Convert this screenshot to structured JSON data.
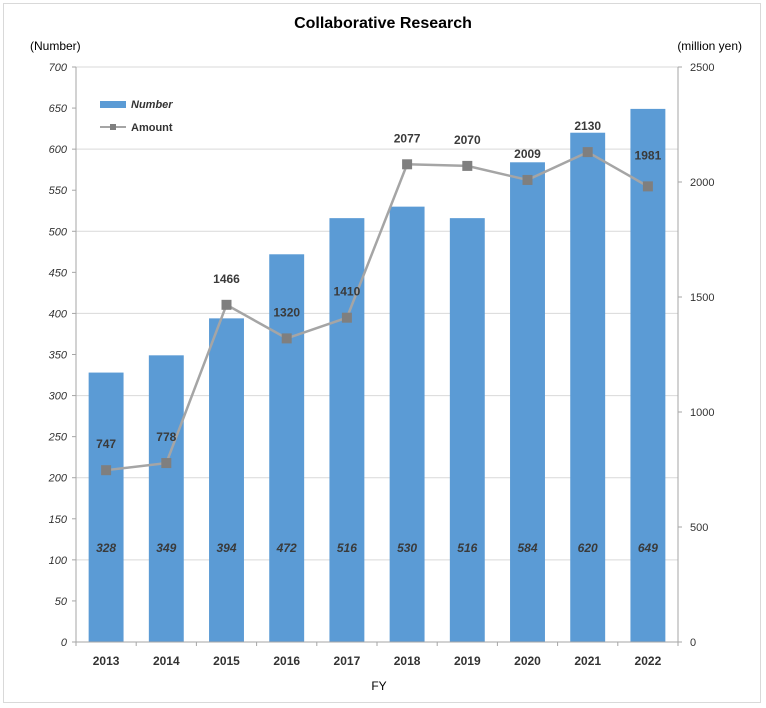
{
  "chart_data": {
    "type": "bar",
    "title": "Collaborative Research",
    "ylabel_left": "(Number)",
    "ylabel_right": "(million yen)",
    "xlabel": "FY",
    "categories": [
      "2013",
      "2014",
      "2015",
      "2016",
      "2017",
      "2018",
      "2019",
      "2020",
      "2021",
      "2022"
    ],
    "series": [
      {
        "name": "Number",
        "type": "bar",
        "axis": "left",
        "color": "#5b9bd5",
        "values": [
          328,
          349,
          394,
          472,
          516,
          530,
          516,
          584,
          620,
          649
        ]
      },
      {
        "name": "Amount",
        "type": "line",
        "axis": "right",
        "color": "#a5a5a5",
        "marker_color": "#7f7f7f",
        "values": [
          747,
          778,
          1466,
          1320,
          1410,
          2077,
          2070,
          2009,
          2130,
          1981
        ]
      }
    ],
    "ylim_left": [
      0,
      700
    ],
    "yticks_left": [
      "0",
      "50",
      "100",
      "150",
      "200",
      "250",
      "300",
      "350",
      "400",
      "450",
      "500",
      "550",
      "600",
      "650",
      "700"
    ],
    "ylim_right": [
      0,
      2500
    ],
    "yticks_right": [
      "0",
      "500",
      "1000",
      "1500",
      "2000",
      "2500"
    ],
    "grid": true,
    "legend": "top-left"
  }
}
